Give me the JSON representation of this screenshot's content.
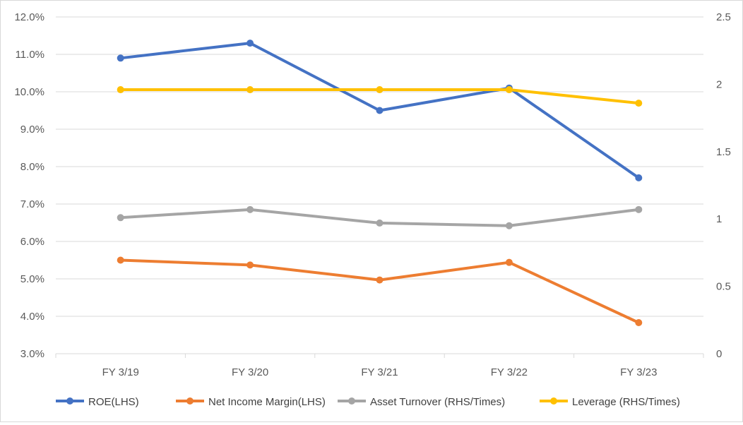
{
  "chart_data": {
    "type": "line",
    "categories": [
      "FY 3/19",
      "FY 3/20",
      "FY 3/21",
      "FY 3/22",
      "FY 3/23"
    ],
    "y_left": {
      "min": 3.0,
      "max": 12.0,
      "step": 1.0,
      "format": "percent_1dp",
      "tick_labels": [
        "3.0%",
        "4.0%",
        "5.0%",
        "6.0%",
        "7.0%",
        "8.0%",
        "9.0%",
        "10.0%",
        "11.0%",
        "12.0%"
      ]
    },
    "y_right": {
      "min": 0,
      "max": 2.5,
      "step": 0.5,
      "tick_labels": [
        "0",
        "0.5",
        "1",
        "1.5",
        "2",
        "2.5"
      ]
    },
    "grid": true,
    "legend_position": "bottom",
    "series": [
      {
        "name": "ROE(LHS)",
        "axis": "left",
        "color": "#4472C4",
        "values": [
          10.9,
          11.3,
          9.5,
          10.1,
          7.7
        ]
      },
      {
        "name": "Net Income Margin(LHS)",
        "axis": "left",
        "color": "#ED7D31",
        "values": [
          5.5,
          5.37,
          4.97,
          5.44,
          3.83
        ]
      },
      {
        "name": "Asset Turnover (RHS/Times)",
        "axis": "right",
        "color": "#A5A5A5",
        "values": [
          1.01,
          1.07,
          0.97,
          0.95,
          1.07
        ]
      },
      {
        "name": "Leverage (RHS/Times)",
        "axis": "right",
        "color": "#FFC000",
        "values": [
          1.96,
          1.96,
          1.96,
          1.96,
          1.86
        ]
      }
    ]
  }
}
